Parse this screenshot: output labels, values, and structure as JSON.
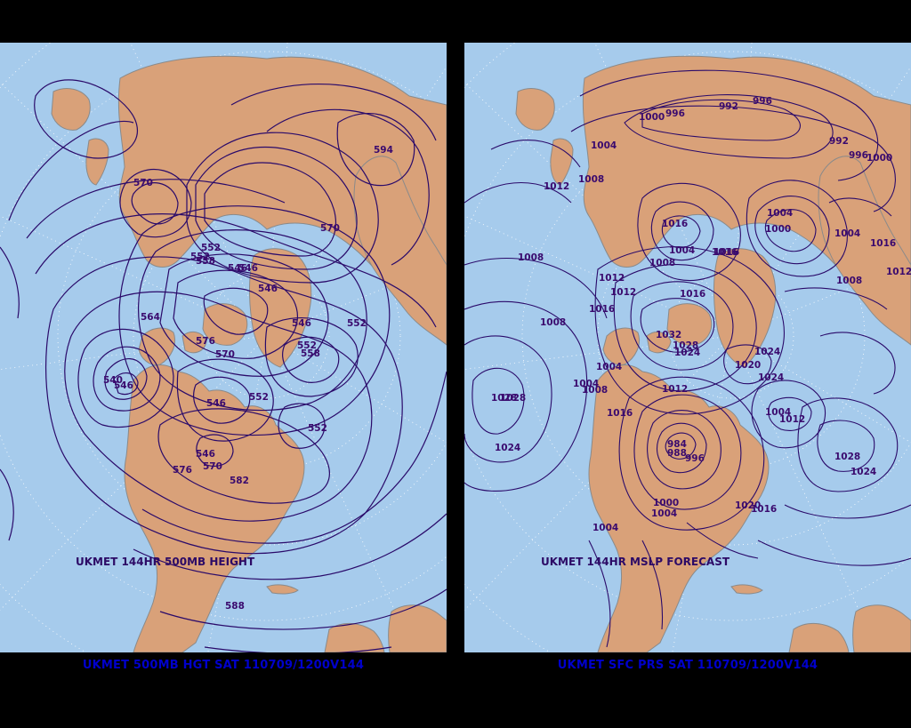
{
  "colors": {
    "ocean": "#a6cbec",
    "land": "#d9a179",
    "border": "#8a8a8a",
    "contour": "#2a0a6a",
    "label": "#3a0a6e",
    "footer_text": "#0000cc",
    "background": "#000000"
  },
  "left_panel": {
    "inner_title": "UKMET 144HR 500MB HEIGHT",
    "footer_title": "UKMET 500MB HGT SAT 110709/1200V144",
    "contour_labels": [
      "594",
      "570",
      "570",
      "552",
      "552",
      "558",
      "546",
      "546",
      "546",
      "552",
      "564",
      "576",
      "570",
      "546",
      "552",
      "546",
      "552",
      "558",
      "552",
      "570",
      "576",
      "582",
      "588",
      "546",
      "546",
      "540"
    ]
  },
  "right_panel": {
    "inner_title": "UKMET 144HR MSLP FORECAST",
    "footer_title": "UKMET SFC PRS SAT 110709/1200V144",
    "contour_labels": [
      "1000",
      "996",
      "992",
      "996",
      "992",
      "996",
      "1000",
      "1004",
      "1012",
      "1008",
      "1004",
      "1000",
      "1004",
      "1016",
      "1016",
      "1008",
      "1004",
      "1016",
      "1012",
      "1008",
      "1012",
      "1012",
      "1016",
      "1016",
      "1008",
      "1016",
      "1008",
      "1032",
      "1028",
      "1024",
      "1004",
      "1004",
      "1008",
      "1012",
      "1020",
      "1024",
      "1024",
      "1028",
      "1016",
      "984",
      "988",
      "996",
      "1000",
      "1004",
      "1004",
      "1012",
      "1028",
      "1024",
      "1024",
      "1028",
      "1020",
      "1016",
      "1004"
    ]
  }
}
